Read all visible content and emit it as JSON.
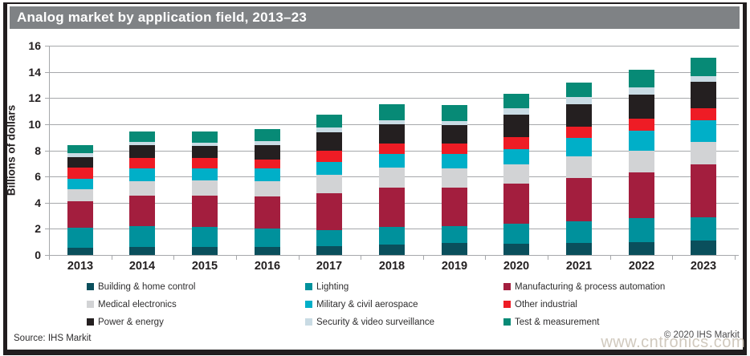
{
  "title": "Analog market by application field, 2013–23",
  "footer": {
    "source": "Source: IHS Markit",
    "copyright": "© 2020 IHS Markit",
    "watermark": "www.cntronics.com"
  },
  "colors": {
    "frame": "#211d1e",
    "title_band": "#7f8285",
    "gridline": "#a6a8ab",
    "axis_text": "#231f20"
  },
  "chart_data": {
    "type": "bar",
    "stacked": true,
    "title": "Analog market by application field, 2013–23",
    "xlabel": "",
    "ylabel": "Billions of dollars",
    "ylim": [
      0,
      16
    ],
    "ytick_step": 2,
    "grid": true,
    "legend_position": "bottom",
    "categories": [
      "2013",
      "2014",
      "2015",
      "2016",
      "2017",
      "2018",
      "2019",
      "2020",
      "2021",
      "2022",
      "2023"
    ],
    "series": [
      {
        "name": "Building & home control",
        "color": "#0a4f5c",
        "values": [
          0.55,
          0.6,
          0.6,
          0.6,
          0.7,
          0.8,
          0.9,
          0.85,
          0.9,
          1.0,
          1.1
        ]
      },
      {
        "name": "Lighting",
        "color": "#00919c",
        "values": [
          1.55,
          1.6,
          1.55,
          1.45,
          1.2,
          1.35,
          1.3,
          1.55,
          1.7,
          1.8,
          1.8
        ]
      },
      {
        "name": "Manufacturing & process automation",
        "color": "#a31e3e",
        "values": [
          2.0,
          2.35,
          2.4,
          2.4,
          2.85,
          3.0,
          2.95,
          3.05,
          3.3,
          3.5,
          4.0
        ]
      },
      {
        "name": "Medical electronics",
        "color": "#d2d3d5",
        "values": [
          0.95,
          1.1,
          1.15,
          1.2,
          1.4,
          1.55,
          1.45,
          1.45,
          1.65,
          1.7,
          1.75
        ]
      },
      {
        "name": "Military & civil aerospace",
        "color": "#00afc8",
        "values": [
          0.75,
          1.0,
          0.95,
          0.95,
          0.95,
          1.05,
          1.1,
          1.2,
          1.4,
          1.5,
          1.65
        ]
      },
      {
        "name": "Other industrial",
        "color": "#ee1c25",
        "values": [
          0.9,
          0.75,
          0.75,
          0.7,
          0.85,
          0.8,
          0.8,
          0.9,
          0.85,
          0.95,
          0.9
        ]
      },
      {
        "name": "Power & energy",
        "color": "#241f20",
        "values": [
          0.8,
          1.0,
          0.95,
          1.1,
          1.4,
          1.45,
          1.45,
          1.7,
          1.7,
          1.8,
          2.05
        ]
      },
      {
        "name": "Security & video surveillance",
        "color": "#c9dbe4",
        "values": [
          0.3,
          0.25,
          0.25,
          0.3,
          0.4,
          0.3,
          0.3,
          0.5,
          0.6,
          0.55,
          0.45
        ]
      },
      {
        "name": "Test & measurement",
        "color": "#078a76",
        "values": [
          0.6,
          0.8,
          0.85,
          0.9,
          0.95,
          1.2,
          1.2,
          1.1,
          1.1,
          1.35,
          1.35
        ]
      }
    ],
    "totals": [
      8.4,
      9.45,
      9.45,
      9.6,
      10.7,
      11.5,
      11.45,
      12.3,
      13.2,
      14.15,
      15.05
    ]
  }
}
